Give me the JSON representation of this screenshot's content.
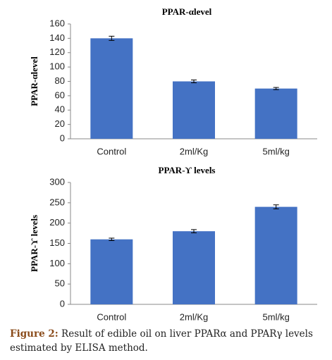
{
  "chart_data": [
    {
      "type": "bar",
      "title": "PPAR-αlevel",
      "ylabel": "PPAR-αlevel",
      "categories": [
        "Control",
        "2ml/Kg",
        "5ml/kg"
      ],
      "values": [
        140,
        80,
        70
      ],
      "errors": [
        3,
        2,
        1.5
      ],
      "color": "#4472c4",
      "ylim": [
        0,
        160
      ],
      "yticks": [
        0,
        20,
        40,
        60,
        80,
        100,
        120,
        140,
        160
      ],
      "grid": false
    },
    {
      "type": "bar",
      "title": "PPAR-ϒ levels",
      "ylabel": "PPAR-ϒ levels",
      "categories": [
        "Control",
        "2ml/Kg",
        "5ml/kg"
      ],
      "values": [
        160,
        180,
        240
      ],
      "errors": [
        3,
        4,
        5
      ],
      "color": "#4472c4",
      "ylim": [
        0,
        300
      ],
      "yticks": [
        0,
        50,
        100,
        150,
        200,
        250,
        300
      ],
      "grid": false
    }
  ],
  "caption": {
    "label": "Figure 2:",
    "text": "Result of edible oil on liver PPARα and PPARγ levels estimated by ELISA method."
  }
}
